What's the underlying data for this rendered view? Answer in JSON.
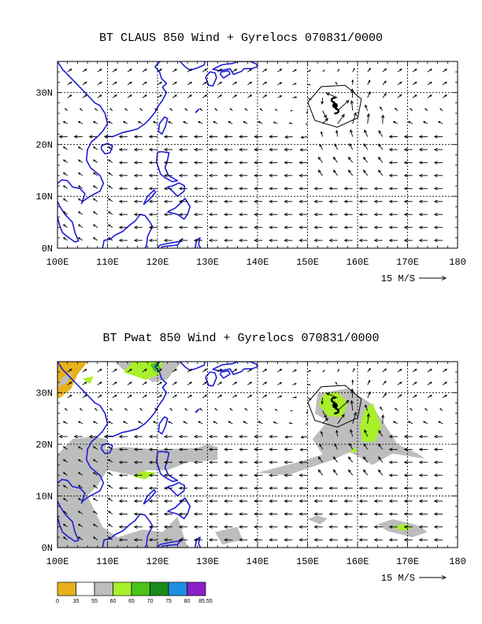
{
  "panels": [
    {
      "title": "BT CLAUS 850 Wind + Gyrelocs 070831/0000",
      "lon_labels": [
        "100E",
        "110E",
        "120E",
        "130E",
        "140E",
        "150E",
        "160E",
        "170E",
        "180"
      ],
      "lat_labels": [
        "30N",
        "20N",
        "10N",
        "0N"
      ],
      "vector_ref": "15 M/S"
    },
    {
      "title": "BT Pwat 850 Wind + Gyrelocs 070831/0000",
      "lon_labels": [
        "100E",
        "110E",
        "120E",
        "130E",
        "140E",
        "150E",
        "160E",
        "170E",
        "180"
      ],
      "lat_labels": [
        "30N",
        "20N",
        "10N",
        "0N"
      ],
      "vector_ref": "15 M/S"
    }
  ],
  "colorbar": {
    "labels": [
      "0",
      "35",
      "55",
      "60",
      "65",
      "70",
      "75",
      "80",
      "85.55"
    ],
    "colors": [
      "#e6b21a",
      "#ffffff",
      "#bdbdbd",
      "#a8f02a",
      "#4cc21a",
      "#1a8a1a",
      "#1e8fe0",
      "#8a1ec8"
    ]
  },
  "colors": {
    "coastline": "#1e1ed2",
    "shade_gray": "#bdbdbd",
    "shade_green": "#a8f02a",
    "shade_darkgreen": "#4cc21a",
    "shade_orange": "#e6b21a"
  },
  "map": {
    "lon_range": [
      100,
      180
    ],
    "lat_range": [
      0,
      36
    ],
    "typhoon_center": [
      155.5,
      27.5
    ]
  }
}
